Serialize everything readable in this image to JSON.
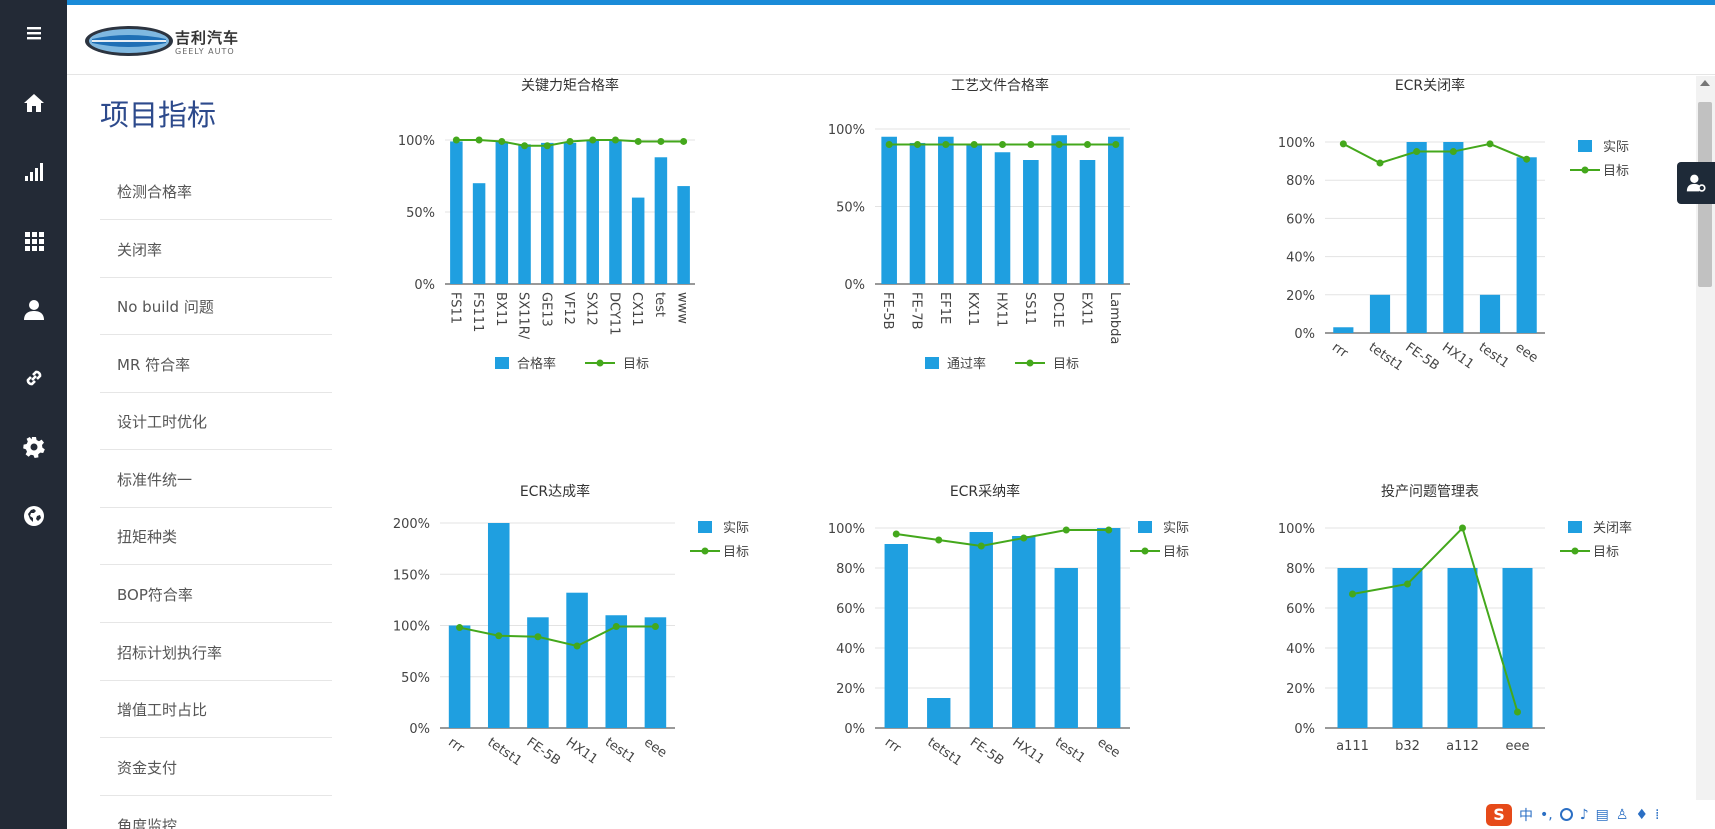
{
  "colors": {
    "bar": "#1f9fe0",
    "target": "#44a81c",
    "rail": "#232a36",
    "accent": "#1a8bd8",
    "title": "#2d4a8c"
  },
  "header": {
    "brand_cn": "吉利汽车",
    "brand_en": "GEELY AUTO"
  },
  "rail": {
    "icons": [
      "menu-icon",
      "home-icon",
      "bar-chart-icon",
      "grid-icon",
      "user-icon",
      "link-icon",
      "gear-icon",
      "globe-icon"
    ]
  },
  "page_title": "项目指标",
  "menu": {
    "items": [
      {
        "label": "检测合格率"
      },
      {
        "label": "关闭率"
      },
      {
        "label": "No build 问题"
      },
      {
        "label": "MR 符合率"
      },
      {
        "label": "设计工时优化"
      },
      {
        "label": "标准件统一"
      },
      {
        "label": "扭矩种类"
      },
      {
        "label": "BOP符合率"
      },
      {
        "label": "招标计划执行率"
      },
      {
        "label": "增值工时占比"
      },
      {
        "label": "资金支付"
      },
      {
        "label": "角度监控"
      }
    ]
  },
  "ime": {
    "zh": "中"
  },
  "chart_data": [
    {
      "type": "bar",
      "title": "关键力矩合格率",
      "categories": [
        "FS11",
        "FS111",
        "BX11",
        "SX11R/",
        "GE13",
        "VF12",
        "SX12",
        "DCY11",
        "CX11",
        "test",
        "www"
      ],
      "series": [
        {
          "name": "合格率",
          "type": "bar",
          "values": [
            99,
            70,
            99,
            97,
            98,
            98,
            100,
            100,
            60,
            88,
            68
          ]
        },
        {
          "name": "目标",
          "type": "line",
          "values": [
            100,
            100,
            99,
            96,
            96,
            99,
            100,
            100,
            99,
            99,
            99
          ]
        }
      ],
      "ylim": [
        0,
        100
      ],
      "yticks": [
        "0%",
        "50%",
        "100%"
      ],
      "legend": "bottom",
      "xlabel_rotation": 90
    },
    {
      "type": "bar",
      "title": "工艺文件合格率",
      "categories": [
        "FE-5B",
        "FE-7B",
        "EF1E",
        "KX11",
        "HX11",
        "SS11",
        "DC1E",
        "EX11",
        "Lambda"
      ],
      "series": [
        {
          "name": "通过率",
          "type": "bar",
          "values": [
            95,
            91,
            95,
            90,
            85,
            80,
            96,
            80,
            95
          ]
        },
        {
          "name": "目标",
          "type": "line",
          "values": [
            90,
            90,
            90,
            90,
            90,
            90,
            90,
            90,
            90
          ]
        }
      ],
      "ylim": [
        0,
        100
      ],
      "yticks": [
        "0%",
        "50%",
        "100%"
      ],
      "legend": "bottom",
      "xlabel_rotation": 90
    },
    {
      "type": "bar",
      "title": "ECR关闭率",
      "categories": [
        "rrr",
        "tetst1",
        "FE-5B",
        "HX11",
        "test1",
        "eee"
      ],
      "series": [
        {
          "name": "实际",
          "type": "bar",
          "values": [
            3,
            20,
            100,
            100,
            20,
            92
          ]
        },
        {
          "name": "目标",
          "type": "line",
          "values": [
            99,
            89,
            95,
            95,
            99,
            91
          ]
        }
      ],
      "ylim": [
        0,
        100
      ],
      "yticks": [
        "0%",
        "20%",
        "40%",
        "60%",
        "80%",
        "100%"
      ],
      "legend": "right",
      "xlabel_rotation": 35
    },
    {
      "type": "bar",
      "title": "ECR达成率",
      "categories": [
        "rrr",
        "tetst1",
        "FE-5B",
        "HX11",
        "test1",
        "eee"
      ],
      "series": [
        {
          "name": "实际",
          "type": "bar",
          "values": [
            100,
            200,
            108,
            132,
            110,
            108
          ]
        },
        {
          "name": "目标",
          "type": "line",
          "values": [
            98,
            90,
            89,
            80,
            99,
            99
          ]
        }
      ],
      "ylim": [
        0,
        200
      ],
      "yticks": [
        "0%",
        "50%",
        "100%",
        "150%",
        "200%"
      ],
      "legend": "right",
      "xlabel_rotation": 35
    },
    {
      "type": "bar",
      "title": "ECR采纳率",
      "categories": [
        "rrr",
        "tetst1",
        "FE-5B",
        "HX11",
        "test1",
        "eee"
      ],
      "series": [
        {
          "name": "实际",
          "type": "bar",
          "values": [
            92,
            15,
            98,
            96,
            80,
            100
          ]
        },
        {
          "name": "目标",
          "type": "line",
          "values": [
            97,
            94,
            91,
            95,
            99,
            99
          ]
        }
      ],
      "ylim": [
        0,
        100
      ],
      "yticks": [
        "0%",
        "20%",
        "40%",
        "60%",
        "80%",
        "100%"
      ],
      "legend": "right",
      "xlabel_rotation": 35
    },
    {
      "type": "bar",
      "title": "投产问题管理表",
      "categories": [
        "a111",
        "b32",
        "a112",
        "eee"
      ],
      "series": [
        {
          "name": "关闭率",
          "type": "bar",
          "values": [
            80,
            80,
            80,
            80
          ]
        },
        {
          "name": "目标",
          "type": "line",
          "values": [
            67,
            72,
            100,
            8
          ]
        }
      ],
      "ylim": [
        0,
        100
      ],
      "yticks": [
        "0%",
        "20%",
        "40%",
        "60%",
        "80%",
        "100%"
      ],
      "legend": "right",
      "xlabel_rotation": 0
    }
  ]
}
